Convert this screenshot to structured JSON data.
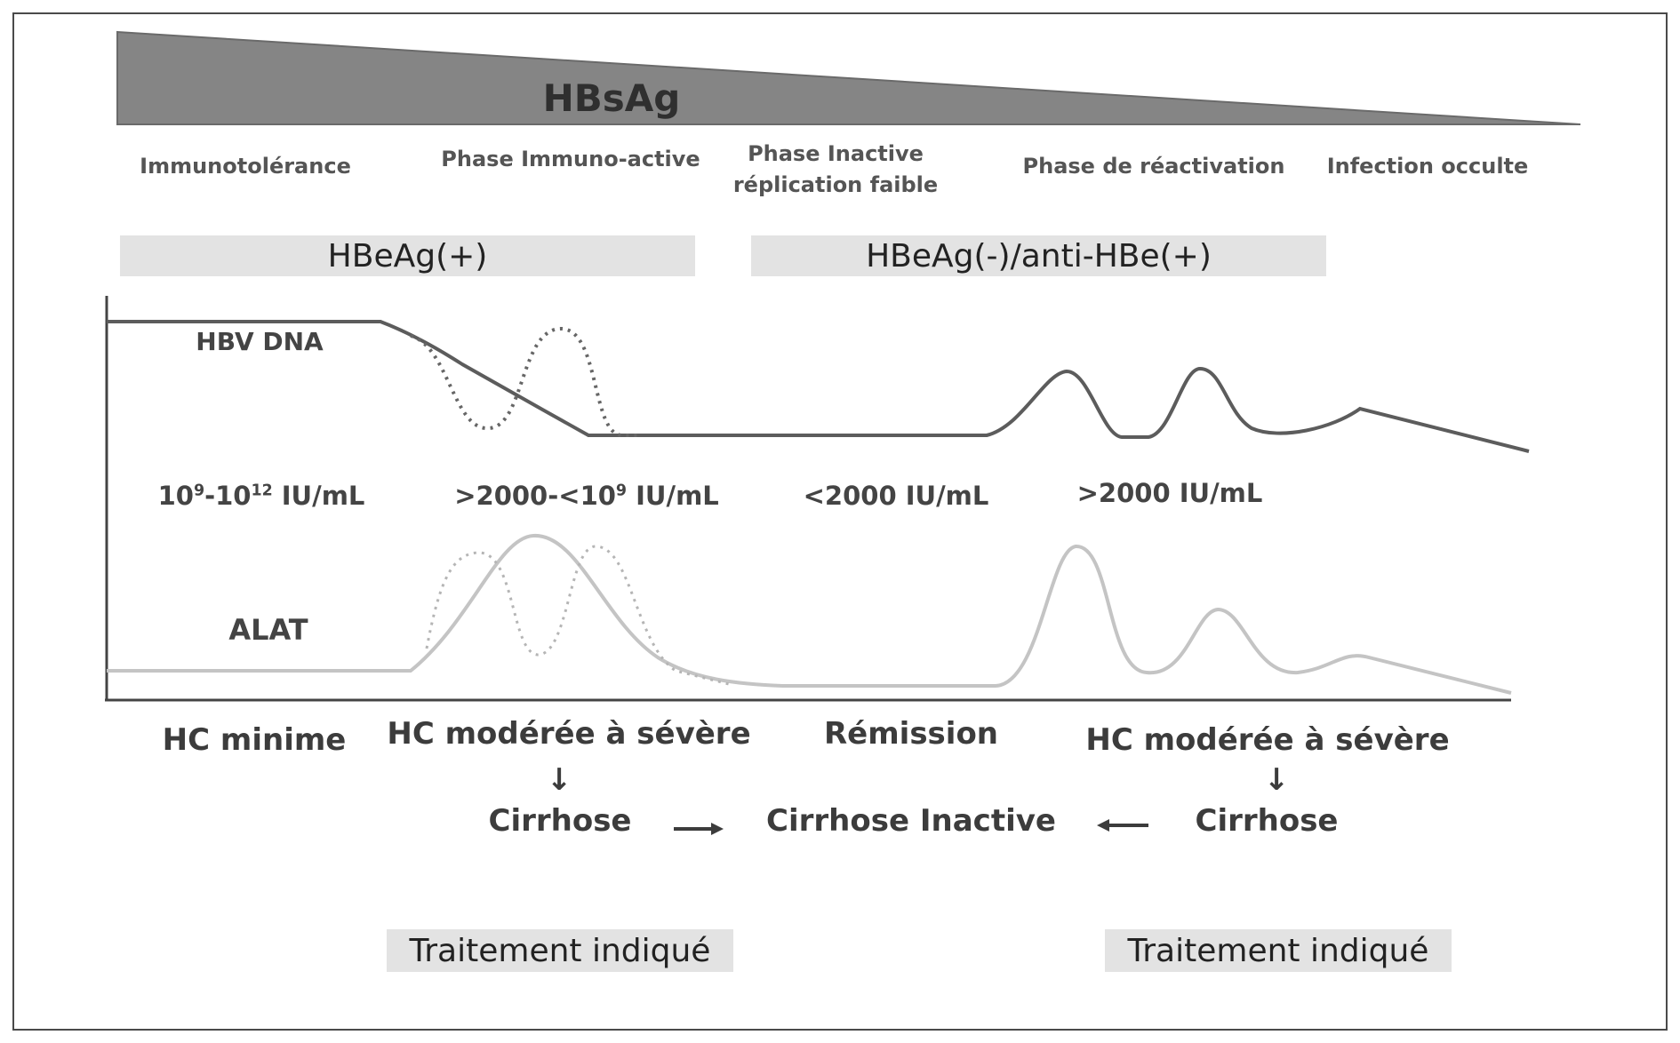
{
  "hbsag_label": "HBsAg",
  "phases": [
    {
      "label": "Immunotolérance"
    },
    {
      "label": "Phase Immuno-active"
    },
    {
      "label": "Phase Inactive réplication faible"
    },
    {
      "label": "Phase de réactivation"
    },
    {
      "label": "Infection occulte"
    }
  ],
  "bands": {
    "positive": "HBeAg(+)",
    "negative": "HBeAg(-)/anti-HBe(+)"
  },
  "curves": {
    "dna_label": "HBV DNA",
    "alat_label": "ALAT"
  },
  "concentrations": {
    "c1_base": "10",
    "c1_exp1": "9",
    "c1_mid": "-10",
    "c1_exp2": "12",
    "c1_unit": " IU/mL",
    "c2_pre": ">2000-<10",
    "c2_exp": "9",
    "c2_unit": " IU/mL",
    "c3": "<2000 IU/mL",
    "c4": ">2000 IU/mL"
  },
  "outcomes": {
    "hc_minime": "HC minime",
    "hc_moderee_1": "HC modérée à sévère",
    "remission": "Rémission",
    "hc_moderee_2": "HC modérée à sévère",
    "cirrhose_1": "Cirrhose",
    "cirrhose_inactive": "Cirrhose Inactive",
    "cirrhose_2": "Cirrhose",
    "arrow_down_1": "↓",
    "arrow_down_2": "↓"
  },
  "treatment": {
    "left": "Traitement indiqué",
    "right": "Traitement indiqué"
  },
  "colors": {
    "wedge": "#858585",
    "dna_line": "#5c5c5c",
    "alat_line": "#c4c4c4",
    "band_bg": "#e3e3e3"
  }
}
